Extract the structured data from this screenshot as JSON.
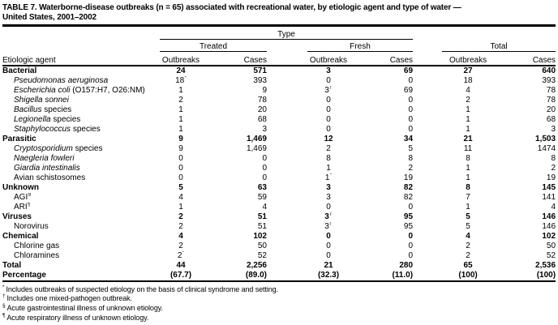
{
  "colors": {
    "text": "#000000",
    "background": "#ffffff",
    "rule": "#000000"
  },
  "title": {
    "line1": "TABLE 7. Waterborne-disease outbreaks (n = 65) associated with recreational water, by etiologic agent and type of water —",
    "line2": "United States, 2001–2002"
  },
  "table": {
    "header": {
      "type_label": "Type",
      "groups": [
        "Treated",
        "Fresh",
        "Total"
      ],
      "agent_label": "Etiologic agent",
      "sub": [
        "Outbreaks",
        "Cases"
      ]
    },
    "rows": [
      {
        "b": true,
        "label": [
          {
            "t": "Bacterial"
          }
        ],
        "cells": [
          {
            "v": "24"
          },
          {
            "v": "571"
          },
          {
            "v": "3"
          },
          {
            "v": "69"
          },
          {
            "v": "27"
          },
          {
            "v": "640"
          }
        ]
      },
      {
        "ind": true,
        "label": [
          {
            "t": "Pseudomonas aeruginosa",
            "i": true
          }
        ],
        "cells": [
          {
            "v": "18",
            "m": "*"
          },
          {
            "v": "393"
          },
          {
            "v": "0"
          },
          {
            "v": "0"
          },
          {
            "v": "18"
          },
          {
            "v": "393"
          }
        ]
      },
      {
        "ind": true,
        "label": [
          {
            "t": "Escherichia coli",
            "i": true
          },
          {
            "t": " (O157:H7, O26:NM)"
          }
        ],
        "cells": [
          {
            "v": "1"
          },
          {
            "v": "9"
          },
          {
            "v": "3",
            "m": "†"
          },
          {
            "v": "69"
          },
          {
            "v": "4"
          },
          {
            "v": "78"
          }
        ]
      },
      {
        "ind": true,
        "label": [
          {
            "t": "Shigella sonnei",
            "i": true
          }
        ],
        "cells": [
          {
            "v": "2"
          },
          {
            "v": "78"
          },
          {
            "v": "0"
          },
          {
            "v": "0"
          },
          {
            "v": "2"
          },
          {
            "v": "78"
          }
        ]
      },
      {
        "ind": true,
        "label": [
          {
            "t": "Bacillus",
            "i": true
          },
          {
            "t": " species"
          }
        ],
        "cells": [
          {
            "v": "1"
          },
          {
            "v": "20"
          },
          {
            "v": "0"
          },
          {
            "v": "0"
          },
          {
            "v": "1"
          },
          {
            "v": "20"
          }
        ]
      },
      {
        "ind": true,
        "label": [
          {
            "t": "Legionella",
            "i": true
          },
          {
            "t": " species"
          }
        ],
        "cells": [
          {
            "v": "1"
          },
          {
            "v": "68"
          },
          {
            "v": "0"
          },
          {
            "v": "0"
          },
          {
            "v": "1"
          },
          {
            "v": "68"
          }
        ]
      },
      {
        "ind": true,
        "label": [
          {
            "t": "Staphylococcus",
            "i": true
          },
          {
            "t": " species"
          }
        ],
        "cells": [
          {
            "v": "1"
          },
          {
            "v": "3"
          },
          {
            "v": "0"
          },
          {
            "v": "0"
          },
          {
            "v": "1"
          },
          {
            "v": "3"
          }
        ]
      },
      {
        "b": true,
        "label": [
          {
            "t": "Parasitic"
          }
        ],
        "cells": [
          {
            "v": "9"
          },
          {
            "v": "1,469"
          },
          {
            "v": "12"
          },
          {
            "v": "34"
          },
          {
            "v": "21"
          },
          {
            "v": "1,503"
          }
        ]
      },
      {
        "ind": true,
        "label": [
          {
            "t": "Cryptosporidium",
            "i": true
          },
          {
            "t": " species"
          }
        ],
        "cells": [
          {
            "v": "9"
          },
          {
            "v": "1,469"
          },
          {
            "v": "2"
          },
          {
            "v": "5"
          },
          {
            "v": "11"
          },
          {
            "v": "1474"
          }
        ]
      },
      {
        "ind": true,
        "label": [
          {
            "t": "Naegleria fowleri",
            "i": true
          }
        ],
        "cells": [
          {
            "v": "0"
          },
          {
            "v": "0"
          },
          {
            "v": "8"
          },
          {
            "v": "8"
          },
          {
            "v": "8"
          },
          {
            "v": "8"
          }
        ]
      },
      {
        "ind": true,
        "label": [
          {
            "t": "Giardia intestinalis",
            "i": true
          }
        ],
        "cells": [
          {
            "v": "0"
          },
          {
            "v": "0"
          },
          {
            "v": "1"
          },
          {
            "v": "2"
          },
          {
            "v": "1"
          },
          {
            "v": "2"
          }
        ]
      },
      {
        "ind": true,
        "label": [
          {
            "t": "Avian schistosomes"
          }
        ],
        "cells": [
          {
            "v": "0"
          },
          {
            "v": "0"
          },
          {
            "v": "1",
            "m": "*"
          },
          {
            "v": "19"
          },
          {
            "v": "1"
          },
          {
            "v": "19"
          }
        ]
      },
      {
        "b": true,
        "label": [
          {
            "t": "Unknown"
          }
        ],
        "cells": [
          {
            "v": "5"
          },
          {
            "v": "63"
          },
          {
            "v": "3"
          },
          {
            "v": "82"
          },
          {
            "v": "8"
          },
          {
            "v": "145"
          }
        ]
      },
      {
        "ind": true,
        "label": [
          {
            "t": "AGI"
          },
          {
            "t": "§",
            "sup": true
          }
        ],
        "cells": [
          {
            "v": "4"
          },
          {
            "v": "59"
          },
          {
            "v": "3"
          },
          {
            "v": "82"
          },
          {
            "v": "7"
          },
          {
            "v": "141"
          }
        ]
      },
      {
        "ind": true,
        "label": [
          {
            "t": "ARI"
          },
          {
            "t": "¶",
            "sup": true
          }
        ],
        "cells": [
          {
            "v": "1"
          },
          {
            "v": "4"
          },
          {
            "v": "0"
          },
          {
            "v": "0"
          },
          {
            "v": "1"
          },
          {
            "v": "4"
          }
        ]
      },
      {
        "b": true,
        "label": [
          {
            "t": "Viruses"
          }
        ],
        "cells": [
          {
            "v": "2"
          },
          {
            "v": "51"
          },
          {
            "v": "3",
            "m": "†"
          },
          {
            "v": "95"
          },
          {
            "v": "5"
          },
          {
            "v": "146"
          }
        ]
      },
      {
        "ind": true,
        "label": [
          {
            "t": "Norovirus"
          }
        ],
        "cells": [
          {
            "v": "2"
          },
          {
            "v": "51"
          },
          {
            "v": "3",
            "m": "†"
          },
          {
            "v": "95"
          },
          {
            "v": "5"
          },
          {
            "v": "146"
          }
        ]
      },
      {
        "b": true,
        "label": [
          {
            "t": "Chemical"
          }
        ],
        "cells": [
          {
            "v": "4"
          },
          {
            "v": "102"
          },
          {
            "v": "0"
          },
          {
            "v": "0"
          },
          {
            "v": "4"
          },
          {
            "v": "102"
          }
        ]
      },
      {
        "ind": true,
        "label": [
          {
            "t": "Chlorine gas"
          }
        ],
        "cells": [
          {
            "v": "2"
          },
          {
            "v": "50"
          },
          {
            "v": "0"
          },
          {
            "v": "0"
          },
          {
            "v": "2"
          },
          {
            "v": "50"
          }
        ]
      },
      {
        "ind": true,
        "label": [
          {
            "t": "Chloramines"
          }
        ],
        "cells": [
          {
            "v": "2",
            "m": "*"
          },
          {
            "v": "52"
          },
          {
            "v": "0"
          },
          {
            "v": "0"
          },
          {
            "v": "2"
          },
          {
            "v": "52"
          }
        ]
      },
      {
        "b": true,
        "label": [
          {
            "t": "Total"
          }
        ],
        "cells": [
          {
            "v": "44"
          },
          {
            "v": "2,256"
          },
          {
            "v": "21"
          },
          {
            "v": "280"
          },
          {
            "v": "65"
          },
          {
            "v": "2,536"
          }
        ]
      },
      {
        "b": true,
        "label": [
          {
            "t": "Percentage"
          }
        ],
        "cells": [
          {
            "v": "(67.7)"
          },
          {
            "v": "(89.0)"
          },
          {
            "v": "(32.3)"
          },
          {
            "v": "(11.0)"
          },
          {
            "v": "(100)"
          },
          {
            "v": "(100)"
          }
        ]
      }
    ]
  },
  "footnotes": [
    {
      "m": "*",
      "t": "Includes outbreaks of suspected etiology on the basis of clinical syndrome and setting."
    },
    {
      "m": "†",
      "t": "Includes one mixed-pathogen outbreak."
    },
    {
      "m": "§",
      "t": "Acute gastrointestinal illness of unknown etiology."
    },
    {
      "m": "¶",
      "t": "Acute respiratory illness of unknown etiology."
    }
  ]
}
